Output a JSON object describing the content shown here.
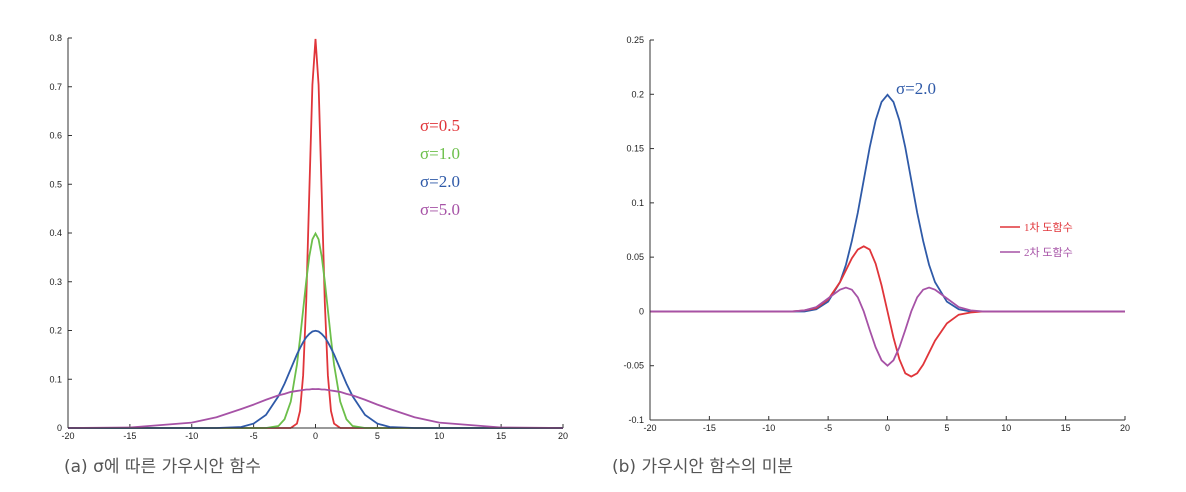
{
  "chart_data": [
    {
      "type": "line",
      "caption": "(a) σ에 따른 가우시안 함수",
      "x": [
        -20,
        -15,
        -10,
        -8,
        -6,
        -5,
        -4,
        -3,
        -2.5,
        -2,
        -1.5,
        -1.25,
        -1,
        -0.75,
        -0.5,
        -0.25,
        0,
        0.25,
        0.5,
        0.75,
        1,
        1.25,
        1.5,
        2,
        2.5,
        3,
        4,
        5,
        6,
        8,
        10,
        15,
        20
      ],
      "series": [
        {
          "name": "σ=0.5",
          "color": "#e0353a",
          "values": [
            0,
            0,
            0,
            0,
            0,
            0,
            0,
            0,
            0,
            0,
            0.009,
            0.035,
            0.108,
            0.259,
            0.484,
            0.704,
            0.798,
            0.704,
            0.484,
            0.259,
            0.108,
            0.035,
            0.009,
            0,
            0,
            0,
            0,
            0,
            0,
            0,
            0,
            0,
            0
          ]
        },
        {
          "name": "σ=1.0",
          "color": "#6cbf4a",
          "values": [
            0,
            0,
            0,
            0,
            0,
            0,
            0,
            0.004,
            0.018,
            0.054,
            0.13,
            0.183,
            0.242,
            0.301,
            0.352,
            0.387,
            0.399,
            0.387,
            0.352,
            0.301,
            0.242,
            0.183,
            0.13,
            0.054,
            0.018,
            0.004,
            0,
            0,
            0,
            0,
            0,
            0,
            0
          ]
        },
        {
          "name": "σ=2.0",
          "color": "#2f5aa8",
          "values": [
            0,
            0,
            0,
            0,
            0.002,
            0.009,
            0.027,
            0.065,
            0.091,
            0.121,
            0.151,
            0.164,
            0.176,
            0.186,
            0.193,
            0.198,
            0.1995,
            0.198,
            0.193,
            0.186,
            0.176,
            0.164,
            0.151,
            0.121,
            0.091,
            0.065,
            0.027,
            0.009,
            0.002,
            0,
            0,
            0,
            0
          ]
        },
        {
          "name": "σ=5.0",
          "color": "#a652a6",
          "values": [
            0,
            0.001,
            0.011,
            0.022,
            0.039,
            0.048,
            0.058,
            0.067,
            0.07,
            0.074,
            0.076,
            0.077,
            0.078,
            0.079,
            0.079,
            0.08,
            0.0798,
            0.08,
            0.079,
            0.079,
            0.078,
            0.077,
            0.076,
            0.074,
            0.07,
            0.067,
            0.058,
            0.048,
            0.039,
            0.022,
            0.011,
            0.001,
            0
          ]
        }
      ],
      "xlim": [
        -20,
        20
      ],
      "ylim": [
        0,
        0.8
      ],
      "xticks": [
        -20,
        -15,
        -10,
        -5,
        0,
        5,
        10,
        15,
        20
      ],
      "yticks": [
        0,
        0.1,
        0.2,
        0.3,
        0.4,
        0.5,
        0.6,
        0.7,
        0.8
      ]
    },
    {
      "type": "line",
      "caption": "(b) 가우시안 함수의 미분",
      "x": [
        -20,
        -10,
        -8,
        -7,
        -6,
        -5,
        -4,
        -3.5,
        -3,
        -2.5,
        -2,
        -1.5,
        -1,
        -0.5,
        0,
        0.5,
        1,
        1.5,
        2,
        2.5,
        3,
        3.5,
        4,
        5,
        6,
        7,
        8,
        10,
        20
      ],
      "series": [
        {
          "name": "σ=2.0",
          "color": "#2f5aa8",
          "values": [
            0,
            0,
            0,
            0,
            0.002,
            0.009,
            0.027,
            0.043,
            0.065,
            0.091,
            0.121,
            0.151,
            0.176,
            0.193,
            0.1995,
            0.193,
            0.176,
            0.151,
            0.121,
            0.091,
            0.065,
            0.043,
            0.027,
            0.009,
            0.002,
            0,
            0,
            0,
            0
          ]
        },
        {
          "name": "1차 도함수",
          "color": "#e0353a",
          "values": [
            0,
            0,
            0,
            0.001,
            0.003,
            0.011,
            0.027,
            0.038,
            0.049,
            0.057,
            0.06,
            0.057,
            0.044,
            0.024,
            0,
            -0.024,
            -0.044,
            -0.057,
            -0.06,
            -0.057,
            -0.049,
            -0.038,
            -0.027,
            -0.011,
            -0.003,
            -0.001,
            0,
            0,
            0
          ]
        },
        {
          "name": "2차 도함수",
          "color": "#a652a6",
          "values": [
            0,
            0,
            0,
            0.001,
            0.004,
            0.012,
            0.02,
            0.022,
            0.02,
            0.013,
            0,
            -0.017,
            -0.033,
            -0.045,
            -0.05,
            -0.045,
            -0.033,
            -0.017,
            0,
            0.013,
            0.02,
            0.022,
            0.02,
            0.012,
            0.004,
            0.001,
            0,
            0,
            0
          ]
        }
      ],
      "xlim": [
        -20,
        20
      ],
      "ylim": [
        -0.1,
        0.25
      ],
      "xticks": [
        -20,
        -15,
        -10,
        -5,
        0,
        5,
        10,
        15,
        20
      ],
      "yticks": [
        -0.1,
        -0.05,
        0,
        0.05,
        0.1,
        0.15,
        0.2,
        0.25
      ]
    }
  ]
}
